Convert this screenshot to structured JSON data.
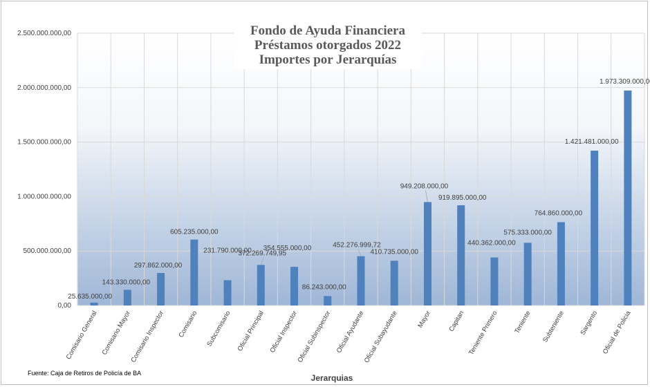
{
  "chart_data": {
    "type": "bar",
    "title_lines": [
      "Fondo de Ayuda Financiera",
      "Préstamos otorgados 2022",
      "Importes por Jerarquías"
    ],
    "xlabel": "Jerarquias",
    "ylabel": "",
    "ylim": [
      0,
      2500000000
    ],
    "yticks": [
      0,
      500000000,
      1000000000,
      1500000000,
      2000000000,
      2500000000
    ],
    "ytick_labels": [
      "0,00",
      "500.000.000,00",
      "1.000.000.000,00",
      "1.500.000.000,00",
      "2.000.000.000,00",
      "2.500.000.000,00"
    ],
    "categories": [
      "Comisario General",
      "Comisario Mayor",
      "Comisario Inspector",
      "Comisario",
      "Subcomisario",
      "Oficial Principal",
      "Oficial Inspector",
      "Oficial Subinspector",
      "Oficial Ayudante",
      "Oficial Subayudante",
      "Mayor",
      "Capitan",
      "Teniente Primero",
      "Teniente",
      "Subteniente",
      "Sargento",
      "Oficial de Policia"
    ],
    "values": [
      25635000,
      143330000,
      297862000,
      605235000,
      231790000,
      372269749.95,
      354555000,
      86243000,
      452276999.72,
      410735000,
      949208000,
      919895000,
      440362000,
      575333000,
      764860000,
      1421481000,
      1973309000
    ],
    "data_labels": [
      "25.635.000,00",
      "143.330.000,00",
      "297.862.000,00",
      "605.235.000,00",
      "231.790.000,00",
      "372.269.749,95",
      "354.555.000,00",
      "86.243.000,00",
      "452.276.999,72",
      "410.735.000,00",
      "949.208.000,00",
      "919.895.000,00",
      "440.362.000,00",
      "575.333.000,00",
      "764.860.000,00",
      "1.421.481.000,00",
      "1.973.309.000,00"
    ],
    "bar_color": "#4f81bd",
    "grid": true,
    "legend": "none"
  },
  "source_note": "Fuente: Caja de Retiros de Policía de BA"
}
